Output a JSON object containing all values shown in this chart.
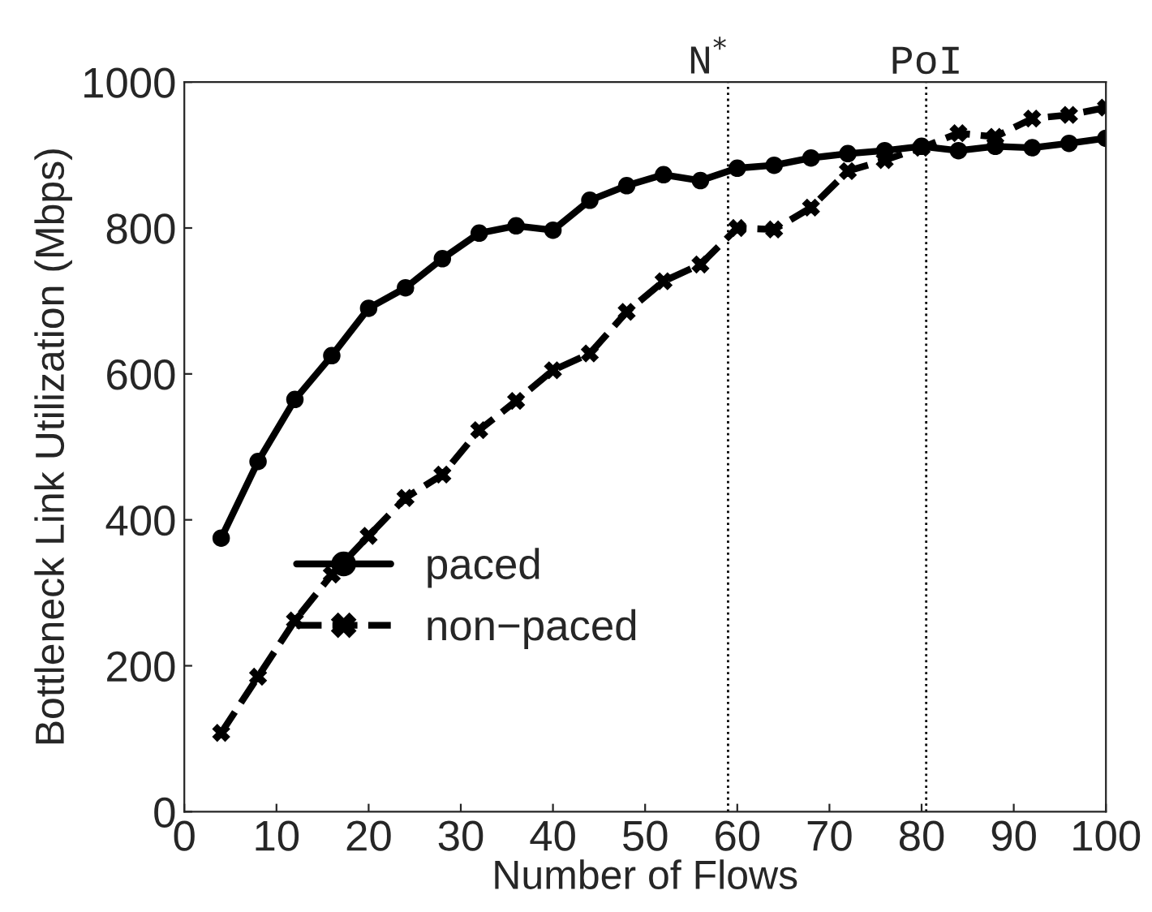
{
  "chart_data": {
    "type": "line",
    "xlabel": "Number of Flows",
    "ylabel": "Bottleneck Link Utilization (Mbps)",
    "x": [
      4,
      8,
      12,
      16,
      20,
      24,
      28,
      32,
      36,
      40,
      44,
      48,
      52,
      56,
      60,
      64,
      68,
      72,
      76,
      80,
      84,
      88,
      92,
      96,
      100
    ],
    "series": [
      {
        "name": "paced",
        "color": "#000000",
        "marker": "circle",
        "line_style": "solid",
        "values": [
          375,
          480,
          565,
          625,
          690,
          718,
          758,
          793,
          803,
          797,
          838,
          858,
          873,
          865,
          882,
          886,
          896,
          902,
          906,
          912,
          906,
          912,
          910,
          916,
          923
        ]
      },
      {
        "name": "non−paced",
        "color": "#000000",
        "marker": "cross",
        "line_style": "dashed",
        "values": [
          108,
          185,
          262,
          325,
          378,
          430,
          462,
          523,
          563,
          605,
          628,
          685,
          727,
          750,
          800,
          798,
          828,
          878,
          893,
          910,
          930,
          925,
          950,
          955,
          965
        ]
      }
    ],
    "xlim": [
      0,
      100
    ],
    "xticks": [
      0,
      10,
      20,
      30,
      40,
      50,
      60,
      70,
      80,
      90,
      100
    ],
    "ylim": [
      0,
      1000
    ],
    "yticks": [
      0,
      200,
      400,
      600,
      800,
      1000
    ],
    "ref_lines": [
      {
        "axis": "x",
        "value": 59,
        "label": "N$^{*}$",
        "line_style": "dotted",
        "color": "#000000"
      },
      {
        "axis": "x",
        "value": 80.5,
        "label": "PoI",
        "line_style": "dotted",
        "color": "#000000"
      }
    ],
    "grid": false,
    "legend": "lower left"
  }
}
